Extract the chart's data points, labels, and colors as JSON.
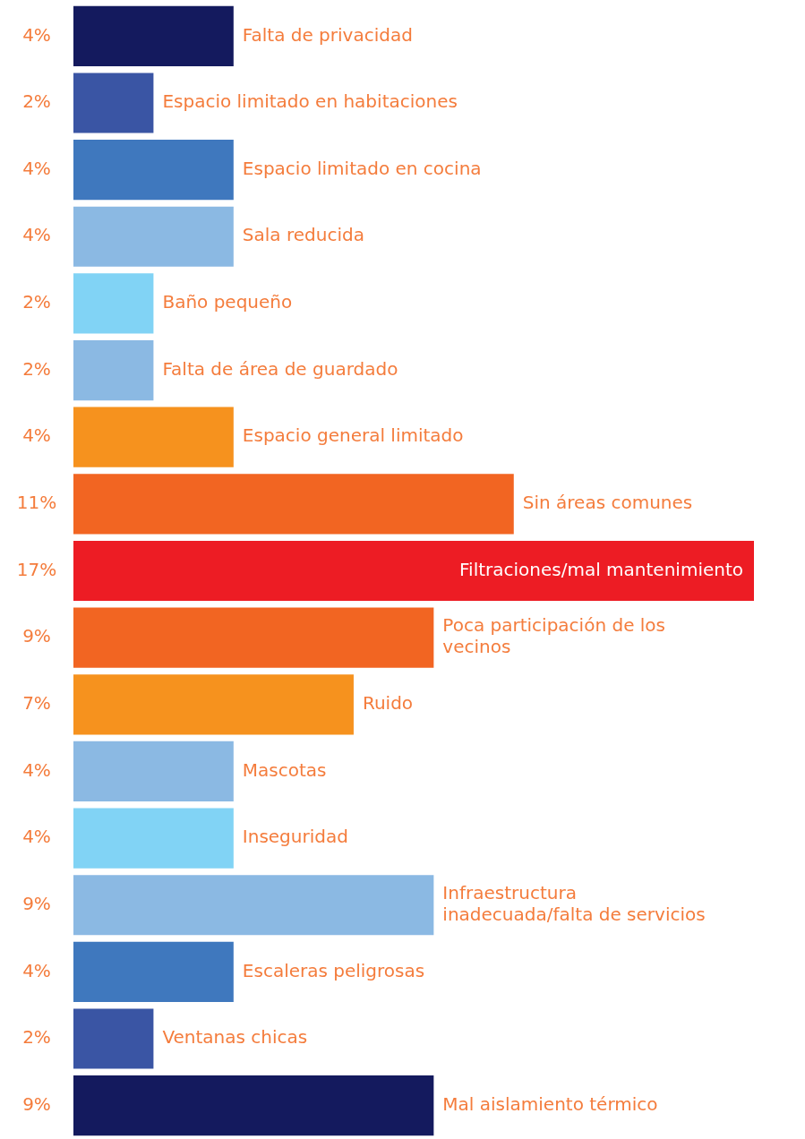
{
  "chart_data": {
    "type": "bar",
    "orientation": "horizontal",
    "tick_labels": false,
    "categories": [
      "Falta de privacidad",
      "Espacio limitado en habitaciones",
      "Espacio limitado en cocina",
      "Sala reducida",
      "Baño pequeño",
      "Falta de área de guardado",
      "Espacio general limitado",
      "Sin áreas comunes",
      "Filtraciones/mal mantenimiento",
      "Poca participación de los vecinos",
      "Ruido",
      "Mascotas",
      "Inseguridad",
      "Infraestructura inadecuada/falta de servicios",
      "Escaleras peligrosas",
      "Ventanas chicas",
      "Mal aislamiento térmico"
    ],
    "values": [
      4,
      2,
      4,
      4,
      2,
      2,
      4,
      11,
      17,
      9,
      7,
      4,
      4,
      9,
      4,
      2,
      9
    ],
    "value_labels": [
      "4%",
      "2%",
      "4%",
      "4%",
      "2%",
      "2%",
      "4%",
      "11%",
      "17%",
      "9%",
      "7%",
      "4%",
      "4%",
      "9%",
      "4%",
      "2%",
      "9%"
    ],
    "colors": [
      "#141a5e",
      "#3a55a4",
      "#3f78be",
      "#8bb9e3",
      "#81d3f5",
      "#8bb9e3",
      "#f6921e",
      "#f26522",
      "#ed1c24",
      "#f26522",
      "#f6921e",
      "#8bb9e3",
      "#81d3f5",
      "#8bb9e3",
      "#3f78be",
      "#3a55a4",
      "#141a5e"
    ]
  }
}
